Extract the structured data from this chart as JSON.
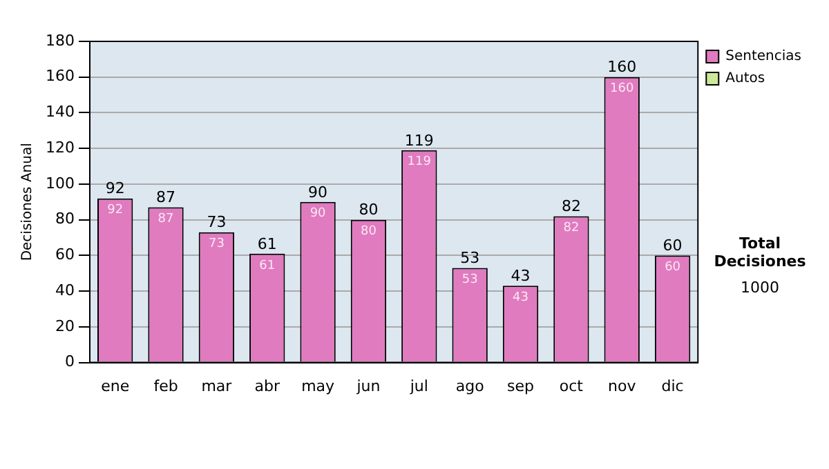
{
  "chart_data": {
    "type": "bar",
    "ylabel": "Decisiones Anual",
    "categories": [
      "ene",
      "feb",
      "mar",
      "abr",
      "may",
      "jun",
      "jul",
      "ago",
      "sep",
      "oct",
      "nov",
      "dic"
    ],
    "series": [
      {
        "name": "Sentencias",
        "color": "#e07bbf",
        "values": [
          92,
          87,
          73,
          61,
          90,
          80,
          119,
          53,
          43,
          82,
          160,
          60
        ]
      },
      {
        "name": "Autos",
        "color": "#cce89a",
        "values": [
          null,
          null,
          null,
          null,
          null,
          null,
          null,
          null,
          null,
          null,
          null,
          null
        ]
      }
    ],
    "stacked": true,
    "data_labels": true,
    "totals": [
      "92",
      "87",
      "73",
      "61",
      "90",
      "80",
      "119",
      "53",
      "43",
      "82",
      "160",
      "60"
    ],
    "ylim": [
      0,
      180
    ],
    "yticks": [
      0,
      20,
      40,
      60,
      80,
      100,
      120,
      140,
      160,
      180
    ],
    "grid": "y",
    "legend": "right",
    "annotations": [
      "Total Decisiones",
      "1000"
    ]
  }
}
